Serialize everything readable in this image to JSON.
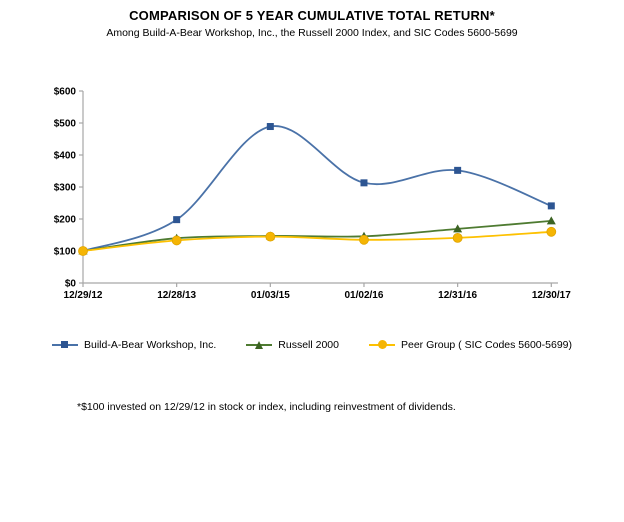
{
  "header": {
    "title": "COMPARISON OF 5 YEAR CUMULATIVE TOTAL RETURN*",
    "subtitle": "Among Build-A-Bear Workshop, Inc., the Russell 2000 Index, and SIC Codes 5600-5699"
  },
  "footnote": "*$100 invested on 12/29/12 in stock or index, including reinvestment of dividends.",
  "chart_data": {
    "type": "line",
    "smooth": true,
    "grid": false,
    "legend_position": "bottom",
    "title": "COMPARISON OF 5 YEAR CUMULATIVE TOTAL RETURN*",
    "xlabel": "",
    "ylabel": "",
    "ylim": [
      0,
      600
    ],
    "y_tick_labels": [
      "$0",
      "$100",
      "$200",
      "$300",
      "$400",
      "$500",
      "$600"
    ],
    "y_tick_values": [
      0,
      100,
      200,
      300,
      400,
      500,
      600
    ],
    "categories": [
      "12/29/12",
      "12/28/13",
      "01/03/15",
      "01/02/16",
      "12/31/16",
      "12/30/17"
    ],
    "axis_color": "#a6a6a6",
    "series": [
      {
        "name": "Build-A-Bear Workshop, Inc.",
        "marker": "square",
        "color": "#4a72a8",
        "marker_color": "#2d5592",
        "values": [
          100,
          198,
          489,
          313,
          352,
          241
        ]
      },
      {
        "name": "Russell 2000",
        "marker": "triangle",
        "color": "#4e7b31",
        "marker_color": "#3c6323",
        "values": [
          100,
          140,
          147,
          146,
          169,
          194
        ]
      },
      {
        "name": "Peer Group ( SIC Codes 5600-5699)",
        "marker": "circle",
        "color": "#fdc101",
        "marker_color": "#f5b504",
        "values": [
          100,
          133,
          145,
          135,
          141,
          160
        ]
      }
    ]
  }
}
